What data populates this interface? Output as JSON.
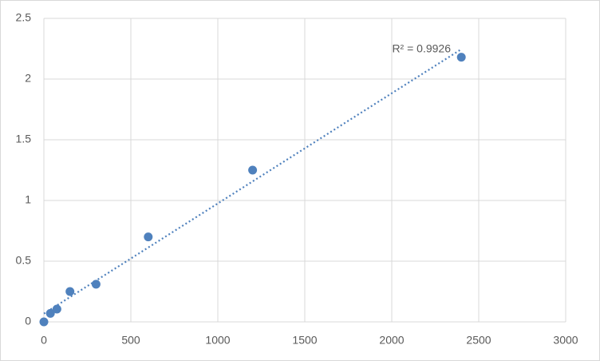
{
  "chart_data": {
    "type": "scatter",
    "x": [
      0,
      37.5,
      75,
      150,
      300,
      600,
      1200,
      2400
    ],
    "values": [
      0,
      0.07,
      0.105,
      0.25,
      0.31,
      0.7,
      1.25,
      2.18
    ],
    "color": "#4f81bd",
    "xlim": [
      0,
      3000
    ],
    "xticks": [
      0,
      500,
      1000,
      1500,
      2000,
      2500,
      3000
    ],
    "ylim": [
      0,
      2.5
    ],
    "yticks": [
      0,
      0.5,
      1,
      1.5,
      2,
      2.5
    ],
    "grid": true,
    "trendline": "linear",
    "annotation": "R² = 0.9926"
  }
}
